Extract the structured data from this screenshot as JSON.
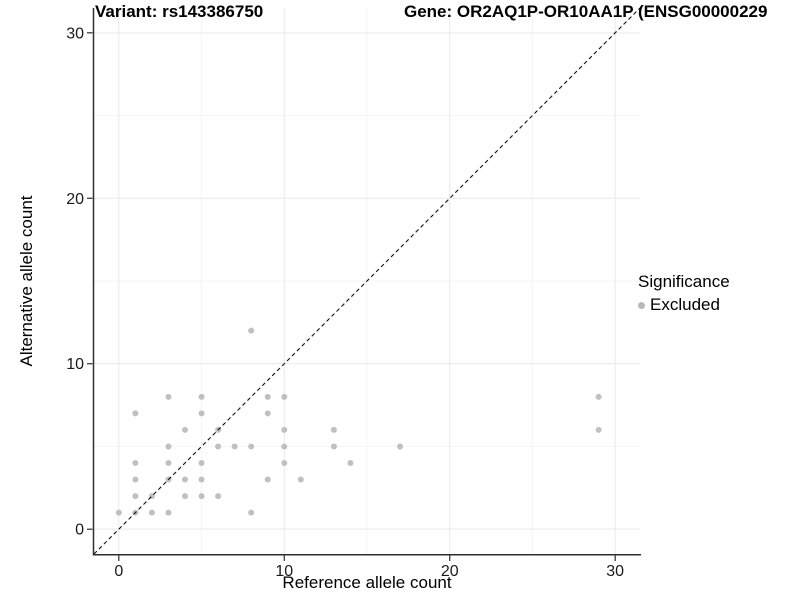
{
  "titles": {
    "variant": "Variant: rs143386750",
    "gene": "Gene: OR2AQ1P-OR10AA1P (ENSG00000229"
  },
  "chart_data": {
    "type": "scatter",
    "title": "Variant: rs143386750",
    "title_right": "Gene: OR2AQ1P-OR10AA1P (ENSG00000229",
    "xlabel": "Reference allele count",
    "ylabel": "Alternative allele count",
    "xlim": [
      -1.5,
      31.5
    ],
    "ylim": [
      -1.5,
      31.5
    ],
    "x_ticks": [
      0,
      10,
      20,
      30
    ],
    "y_ticks": [
      0,
      10,
      20,
      30
    ],
    "x_minor_ticks": [
      5,
      15,
      25
    ],
    "y_minor_ticks": [
      5,
      15,
      25
    ],
    "grid": true,
    "identity_line": {
      "type": "dashed",
      "equation": "y = x",
      "color": "#111111"
    },
    "legend": {
      "title": "Significance",
      "position": "right",
      "items": [
        {
          "label": "Excluded",
          "color": "#b9b9b9"
        }
      ]
    },
    "series": [
      {
        "name": "Excluded",
        "color": "#b9b9b9",
        "points": [
          [
            0,
            1
          ],
          [
            1,
            1
          ],
          [
            1,
            2
          ],
          [
            1,
            3
          ],
          [
            1,
            4
          ],
          [
            1,
            7
          ],
          [
            2,
            1
          ],
          [
            2,
            2
          ],
          [
            3,
            1
          ],
          [
            3,
            3
          ],
          [
            3,
            4
          ],
          [
            3,
            5
          ],
          [
            3,
            8
          ],
          [
            4,
            2
          ],
          [
            4,
            3
          ],
          [
            4,
            6
          ],
          [
            5,
            2
          ],
          [
            5,
            3
          ],
          [
            5,
            4
          ],
          [
            5,
            7
          ],
          [
            5,
            8
          ],
          [
            6,
            2
          ],
          [
            6,
            5
          ],
          [
            6,
            6
          ],
          [
            7,
            5
          ],
          [
            8,
            1
          ],
          [
            8,
            5
          ],
          [
            8,
            12
          ],
          [
            9,
            3
          ],
          [
            9,
            7
          ],
          [
            9,
            8
          ],
          [
            10,
            4
          ],
          [
            10,
            5
          ],
          [
            10,
            6
          ],
          [
            10,
            8
          ],
          [
            11,
            3
          ],
          [
            13,
            5
          ],
          [
            13,
            6
          ],
          [
            14,
            4
          ],
          [
            17,
            5
          ],
          [
            29,
            6
          ],
          [
            29,
            8
          ]
        ]
      }
    ],
    "colors": {
      "point": "#b9b9b9",
      "major_grid": "#e9e9e9",
      "minor_grid": "#f4f4f4",
      "axis_line": "#2e2e2e",
      "tick_text": "#1a1a1a"
    }
  }
}
